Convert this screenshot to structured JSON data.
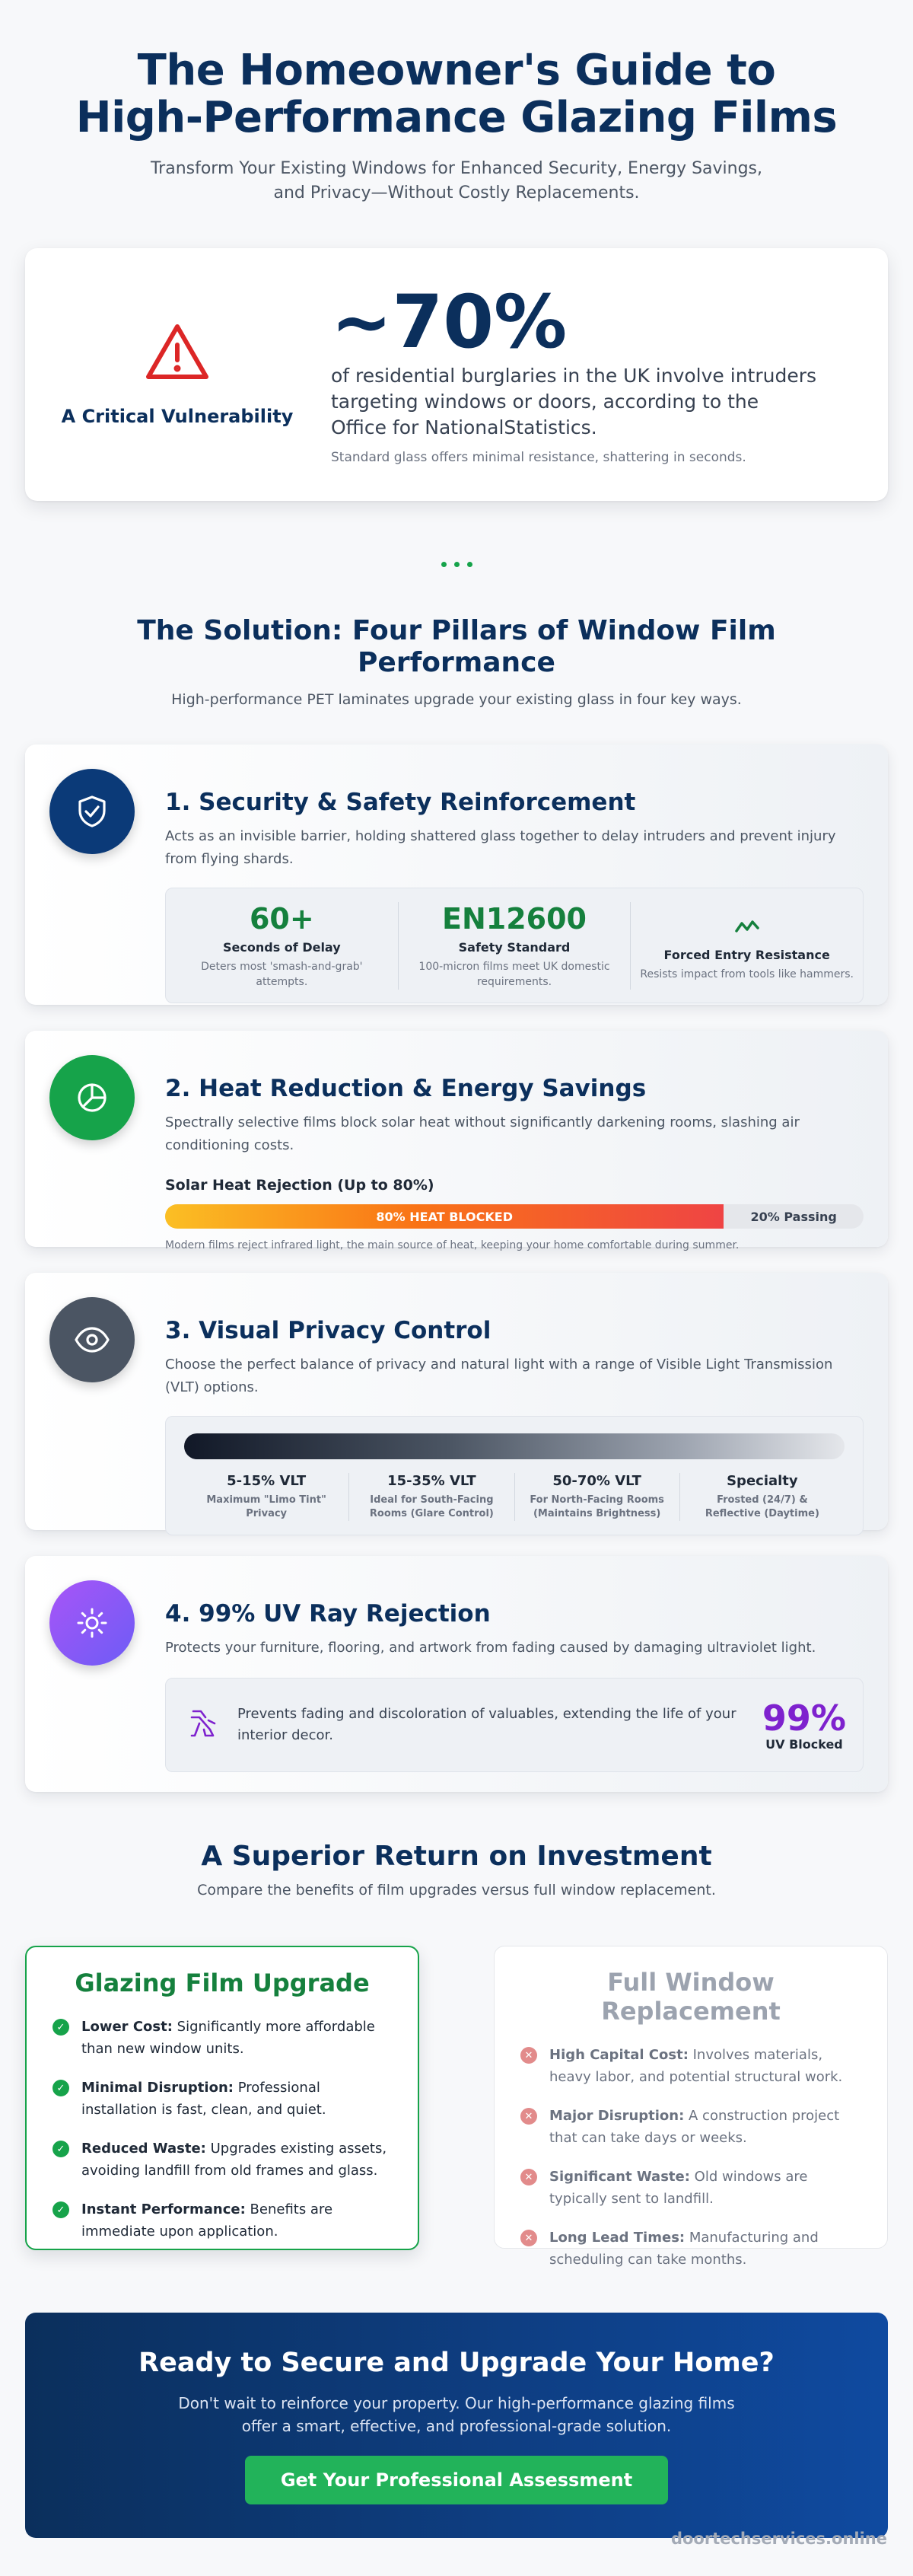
{
  "hero": {
    "title_line1": "The Homeowner's Guide to",
    "title_line2": "High-Performance Glazing Films",
    "subtitle_line1": "Transform Your Existing Windows for Enhanced Security, Energy Savings,",
    "subtitle_line2": "and Privacy—Without Costly Replacements."
  },
  "stat_card": {
    "icon": "warning-triangle-icon",
    "label": "A Critical Vulnerability",
    "big_value": "~70%",
    "desc_line1": "of residential burglaries in the UK involve intruders",
    "desc_line2": "targeting windows or doors, according to the",
    "desc_line3": "Office for NationalStatistics.",
    "note": "Standard glass offers minimal resistance, shattering in seconds."
  },
  "solution": {
    "title_line1": "The Solution: Four Pillars of Window Film",
    "title_line2": "Performance",
    "subtitle": "High-performance PET laminates upgrade your existing glass in four key ways."
  },
  "pillars": {
    "security": {
      "icon": "shield-check-icon",
      "color": "#0b3a78",
      "title": "1. Security & Safety Reinforcement",
      "desc": "Acts as an invisible barrier, holding shattered glass together to delay intruders and prevent injury from flying shards.",
      "metrics": [
        {
          "value": "60+",
          "title": "Seconds of Delay",
          "desc": "Deters most 'smash-and-grab' attempts."
        },
        {
          "value": "EN12600",
          "title": "Safety Standard",
          "desc": "100-micron films meet UK domestic requirements."
        },
        {
          "value": "",
          "title": "Forced Entry Resistance",
          "desc": "Resists impact from tools like hammers."
        }
      ]
    },
    "heat": {
      "icon": "pie-chart-icon",
      "color": "#16a34a",
      "title": "2. Heat Reduction & Energy Savings",
      "desc": "Spectrally selective films block solar heat without significantly darkening rooms, slashing air conditioning costs.",
      "bar_label": "Solar Heat Rejection (Up to 80%)",
      "blocked_percent": 80,
      "blocked_label": "80% HEAT BLOCKED",
      "passing_label": "20% Passing",
      "note": "Modern films reject infrared light, the main source of heat, keeping your home comfortable during summer."
    },
    "privacy": {
      "icon": "eye-icon",
      "color": "#4b5563",
      "title": "3. Visual Privacy Control",
      "desc": "Choose the perfect balance of privacy and natural light with a range of Visible Light Transmission (VLT) options.",
      "options": [
        {
          "title": "5-15% VLT",
          "d1": "Maximum \"Limo Tint\"",
          "d2": "Privacy"
        },
        {
          "title": "15-35% VLT",
          "d1": "Ideal for South-Facing",
          "d2": "Rooms (Glare Control)"
        },
        {
          "title": "50-70% VLT",
          "d1": "For North-Facing Rooms",
          "d2": "(Maintains Brightness)"
        },
        {
          "title": "Specialty",
          "d1": "Frosted (24/7) &",
          "d2": "Reflective (Daytime)"
        }
      ]
    },
    "uv": {
      "icon": "sun-icon",
      "color": "#8b5cf6",
      "title": "4. 99% UV Ray Rejection",
      "desc": "Protects your furniture, flooring, and artwork from fading caused by damaging ultraviolet light.",
      "box_icon": "fading-hand-icon",
      "box_text": "Prevents fading and discoloration of valuables, extending the life of your interior decor.",
      "value": "99%",
      "value_label": "UV Blocked"
    }
  },
  "roi": {
    "title": "A Superior Return on Investment",
    "subtitle": "Compare the benefits of film upgrades versus full window replacement."
  },
  "compare": {
    "film": {
      "title": "Glazing Film Upgrade",
      "items": [
        {
          "strong": "Lower Cost:",
          "text": " Significantly more affordable than new window units."
        },
        {
          "strong": "Minimal Disruption:",
          "text": " Professional installation is fast, clean, and quiet."
        },
        {
          "strong": "Reduced Waste:",
          "text": " Upgrades existing assets, avoiding landfill from old frames and glass."
        },
        {
          "strong": "Instant Performance:",
          "text": " Benefits are immediate upon application."
        }
      ]
    },
    "replacement": {
      "title": "Full Window Replacement",
      "items": [
        {
          "strong": "High Capital Cost:",
          "text": " Involves materials, heavy labor, and potential structural work."
        },
        {
          "strong": "Major Disruption:",
          "text": " A construction project that can take days or weeks."
        },
        {
          "strong": "Significant Waste:",
          "text": " Old windows are typically sent to landfill."
        },
        {
          "strong": "Long Lead Times:",
          "text": " Manufacturing and scheduling can take months."
        }
      ]
    }
  },
  "cta": {
    "title": "Ready to Secure and Upgrade Your Home?",
    "text_line1": "Don't wait to reinforce your property. Our high-performance glazing films",
    "text_line2": "offer a smart, effective, and professional-grade solution.",
    "button": "Get Your Professional Assessment"
  },
  "footer": {
    "domain": "doortechservices.online"
  }
}
